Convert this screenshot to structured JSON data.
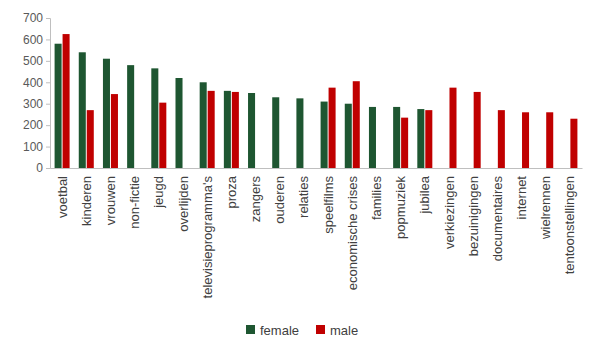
{
  "chart_data": {
    "type": "bar",
    "categories": [
      "voetbal",
      "kinderen",
      "vrouwen",
      "non-fictie",
      "jeugd",
      "overlijden",
      "televisieprogramma's",
      "proza",
      "zangers",
      "ouderen",
      "relaties",
      "speelfilms",
      "economische crises",
      "families",
      "popmuziek",
      "jubilea",
      "verkiezingen",
      "bezuinigingen",
      "documentaires",
      "internet",
      "wielrennen",
      "tentoonstellingen"
    ],
    "series": [
      {
        "name": "female",
        "color": "#1e5631",
        "values": [
          580,
          540,
          510,
          480,
          465,
          420,
          400,
          360,
          350,
          330,
          325,
          310,
          300,
          285,
          285,
          275,
          null,
          null,
          null,
          null,
          null,
          null
        ]
      },
      {
        "name": "male",
        "color": "#c00000",
        "values": [
          625,
          270,
          345,
          null,
          305,
          null,
          360,
          355,
          null,
          null,
          null,
          375,
          405,
          null,
          235,
          270,
          375,
          355,
          270,
          260,
          260,
          230
        ]
      }
    ],
    "ylim": [
      0,
      700
    ],
    "yticks": [
      0,
      100,
      200,
      300,
      400,
      500,
      600,
      700
    ],
    "grid": false,
    "legend": "bottom"
  }
}
